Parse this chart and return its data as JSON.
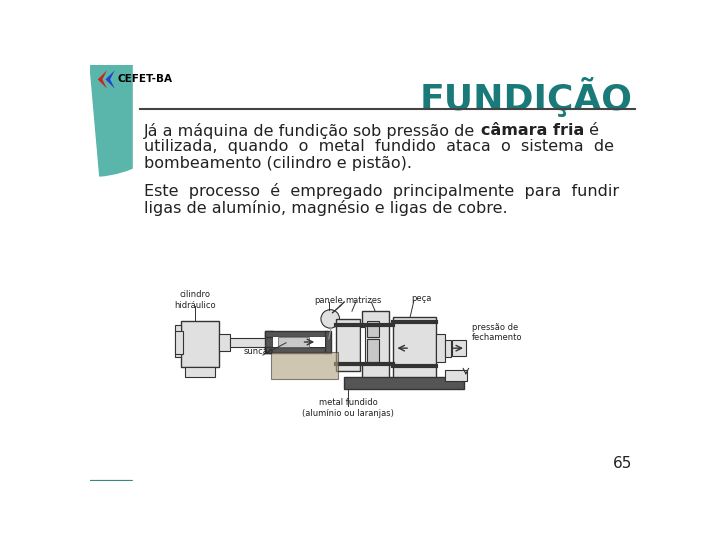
{
  "title": "FUNDIÇÃO",
  "title_color": "#1a7a7a",
  "title_fontsize": 26,
  "bg_color": "#ffffff",
  "text_color": "#222222",
  "logo_text": "CEFET-BA",
  "p1_normal": "Já a máquina de fundição sob pressão de ",
  "p1_bold": "câmara fria",
  "p1_end": " é",
  "p1_l2": "utilizada,  quando  o  metal  fundido  ataca  o  sistema  de",
  "p1_l3": "bombeamento (cilindro e pistão).",
  "p2_l1": "Este  processo  é  empregado  principalmente  para  fundir",
  "p2_l2": "ligas de alumínio, magnésio e ligas de cobre.",
  "page_number": "65",
  "teal_dark": "#2e8b80",
  "teal_light": "#5ab5aa",
  "logo_red": "#cc2222",
  "logo_blue": "#2244cc"
}
